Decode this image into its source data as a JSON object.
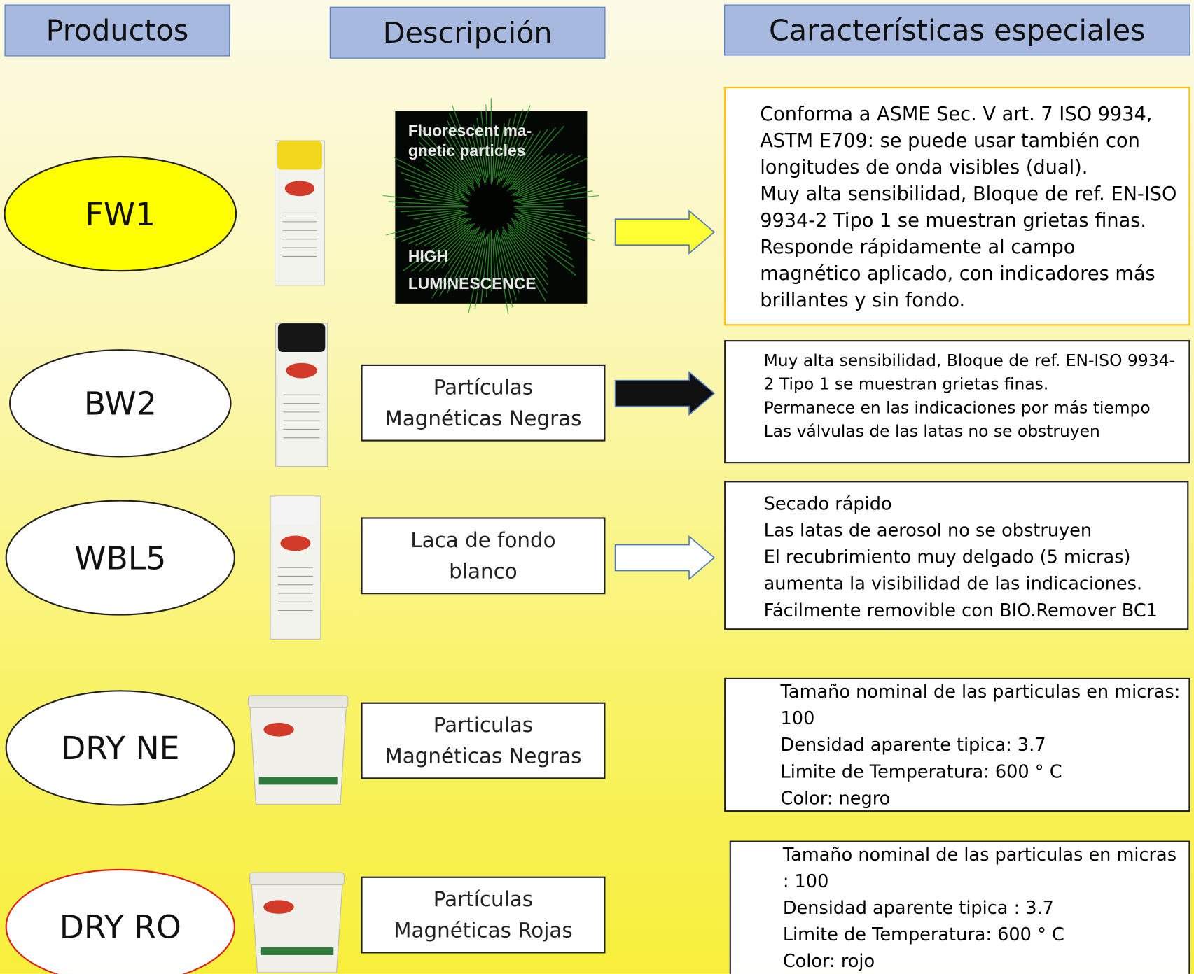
{
  "headers": [
    "Productos",
    "Descripción",
    "Características especiales"
  ],
  "products": [
    {
      "name": "FW1",
      "image_text": [
        "Fluorescent ma-",
        "gnetic particles",
        "HIGH",
        "LUMINESCENCE"
      ],
      "features": [
        "Conforma a ASME Sec. V art. 7 ISO 9934, ASTM E709: se puede usar también con longitudes de onda visibles (dual).",
        "Muy alta sensibilidad, Bloque de ref. EN-ISO 9934-2 Tipo 1 se muestran grietas finas.",
        "Responde rápidamente al campo magnético aplicado, con indicadores más brillantes y sin fondo."
      ]
    },
    {
      "name": "BW2",
      "description": [
        "Partículas",
        "Magnéticas Negras"
      ],
      "features": [
        "Muy alta sensibilidad, Bloque de ref. EN-ISO 9934-2 Tipo 1 se muestran grietas finas.",
        "Permanece en las indicaciones por más tiempo",
        "Las válvulas de las latas no se obstruyen"
      ]
    },
    {
      "name": "WBL5",
      "description": [
        "Laca de fondo",
        "blanco"
      ],
      "features": [
        "Secado rápido",
        "Las latas de aerosol no se obstruyen",
        "El recubrimiento muy delgado (5 micras) aumenta la visibilidad de las indicaciones.",
        "Fácilmente removible con BIO.Remover BC1"
      ]
    },
    {
      "name": "DRY NE",
      "description": [
        "Particulas",
        "Magnéticas Negras"
      ],
      "features": [
        "Tamaño nominal de las particulas en micras: 100",
        "Densidad aparente tipica: 3.7",
        "Limite de Temperatura: 600 ° C",
        "Color: negro"
      ]
    },
    {
      "name": "DRY RO",
      "description": [
        "Partículas",
        "Magnéticas Rojas"
      ],
      "features": [
        "Tamaño nominal de las particulas en micras : 100",
        "Densidad aparente tipica : 3.7",
        "Limite de Temperatura: 600 ° C",
        "Color: rojo"
      ]
    }
  ]
}
